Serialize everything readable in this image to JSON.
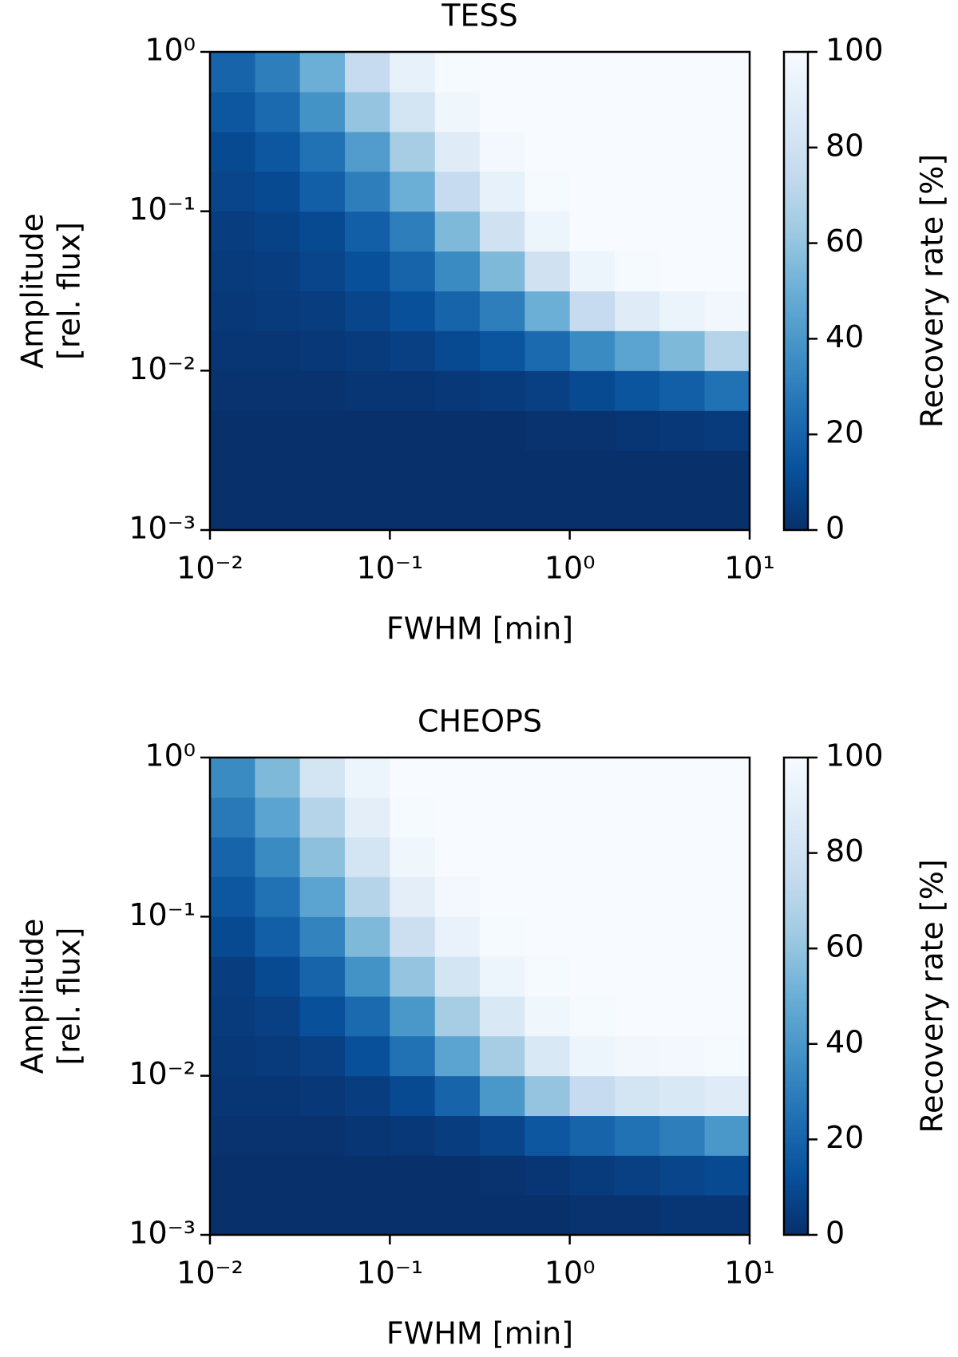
{
  "chart_data": [
    {
      "type": "heatmap",
      "title": "TESS",
      "xlabel": "FWHM [min]",
      "ylabel": [
        "Amplitude",
        "[rel. flux]"
      ],
      "log_x": true,
      "log_y": true,
      "colormap": "Blues",
      "xlim": [
        0.01,
        10
      ],
      "ylim": [
        0.001,
        1
      ],
      "xticks": [
        {
          "value": 0.01,
          "label": "10⁻²"
        },
        {
          "value": 0.1,
          "label": "10⁻¹"
        },
        {
          "value": 1,
          "label": "10⁰"
        },
        {
          "value": 10,
          "label": "10¹"
        }
      ],
      "yticks": [
        {
          "value": 0.001,
          "label": "10⁻³"
        },
        {
          "value": 0.01,
          "label": "10⁻²"
        },
        {
          "value": 0.1,
          "label": "10⁻¹"
        },
        {
          "value": 1,
          "label": "10⁰"
        }
      ],
      "xbins": [
        0.01,
        0.0178,
        0.0316,
        0.0562,
        0.1,
        0.178,
        0.316,
        0.562,
        1,
        1.78,
        3.16,
        5.62,
        10
      ],
      "ybins": [
        0.001,
        0.00178,
        0.00316,
        0.00562,
        0.01,
        0.0178,
        0.0316,
        0.0562,
        0.1,
        0.178,
        0.316,
        0.562,
        1
      ],
      "z": [
        [
          0,
          0,
          0,
          0,
          0,
          0,
          0,
          0,
          0,
          0,
          0,
          0
        ],
        [
          0,
          0,
          0,
          0,
          0,
          0,
          0,
          0,
          0,
          0,
          0,
          0
        ],
        [
          0,
          0,
          0,
          0,
          0,
          0,
          0,
          1,
          1,
          2,
          3,
          4
        ],
        [
          1,
          1,
          1,
          2,
          2,
          3,
          4,
          6,
          10,
          14,
          18,
          25
        ],
        [
          2,
          2,
          3,
          4,
          6,
          10,
          14,
          22,
          35,
          45,
          55,
          70
        ],
        [
          3,
          4,
          5,
          8,
          12,
          20,
          30,
          50,
          75,
          88,
          94,
          97
        ],
        [
          4,
          5,
          8,
          12,
          20,
          35,
          55,
          80,
          95,
          99,
          100,
          100
        ],
        [
          5,
          7,
          10,
          18,
          30,
          55,
          80,
          95,
          100,
          100,
          100,
          100
        ],
        [
          8,
          10,
          18,
          30,
          50,
          75,
          92,
          99,
          100,
          100,
          100,
          100
        ],
        [
          10,
          15,
          25,
          42,
          65,
          88,
          98,
          100,
          100,
          100,
          100,
          100
        ],
        [
          15,
          22,
          38,
          60,
          82,
          96,
          100,
          100,
          100,
          100,
          100,
          100
        ],
        [
          20,
          30,
          50,
          75,
          92,
          99,
          100,
          100,
          100,
          100,
          100,
          100
        ]
      ],
      "colorbar": {
        "label": "Recovery rate [%]",
        "lim": [
          0,
          100
        ],
        "ticks": [
          0,
          20,
          40,
          60,
          80,
          100
        ]
      }
    },
    {
      "type": "heatmap",
      "title": "CHEOPS",
      "xlabel": "FWHM [min]",
      "ylabel": [
        "Amplitude",
        "[rel. flux]"
      ],
      "log_x": true,
      "log_y": true,
      "colormap": "Blues",
      "xlim": [
        0.01,
        10
      ],
      "ylim": [
        0.001,
        1
      ],
      "xticks": [
        {
          "value": 0.01,
          "label": "10⁻²"
        },
        {
          "value": 0.1,
          "label": "10⁻¹"
        },
        {
          "value": 1,
          "label": "10⁰"
        },
        {
          "value": 10,
          "label": "10¹"
        }
      ],
      "yticks": [
        {
          "value": 0.001,
          "label": "10⁻³"
        },
        {
          "value": 0.01,
          "label": "10⁻²"
        },
        {
          "value": 0.1,
          "label": "10⁻¹"
        },
        {
          "value": 1,
          "label": "10⁰"
        }
      ],
      "xbins": [
        0.01,
        0.0178,
        0.0316,
        0.0562,
        0.1,
        0.178,
        0.316,
        0.562,
        1,
        1.78,
        3.16,
        5.62,
        10
      ],
      "ybins": [
        0.001,
        0.00178,
        0.00316,
        0.00562,
        0.01,
        0.0178,
        0.0316,
        0.0562,
        0.1,
        0.178,
        0.316,
        0.562,
        1
      ],
      "z": [
        [
          0,
          0,
          0,
          0,
          0,
          0,
          0,
          0,
          1,
          1,
          2,
          2
        ],
        [
          0,
          0,
          0,
          0,
          0,
          0,
          1,
          2,
          4,
          6,
          8,
          10
        ],
        [
          1,
          1,
          1,
          2,
          3,
          5,
          8,
          15,
          20,
          25,
          30,
          40
        ],
        [
          2,
          2,
          3,
          5,
          10,
          20,
          40,
          60,
          75,
          82,
          85,
          88
        ],
        [
          3,
          4,
          6,
          12,
          25,
          45,
          65,
          85,
          95,
          97,
          98,
          99
        ],
        [
          4,
          6,
          12,
          22,
          40,
          65,
          85,
          96,
          99,
          100,
          100,
          100
        ],
        [
          5,
          10,
          20,
          38,
          60,
          82,
          95,
          99,
          100,
          100,
          100,
          100
        ],
        [
          10,
          18,
          32,
          55,
          78,
          93,
          99,
          100,
          100,
          100,
          100,
          100
        ],
        [
          15,
          25,
          45,
          70,
          90,
          98,
          100,
          100,
          100,
          100,
          100,
          100
        ],
        [
          20,
          35,
          58,
          82,
          96,
          100,
          100,
          100,
          100,
          100,
          100,
          100
        ],
        [
          28,
          45,
          70,
          90,
          99,
          100,
          100,
          100,
          100,
          100,
          100,
          100
        ],
        [
          35,
          55,
          82,
          95,
          100,
          100,
          100,
          100,
          100,
          100,
          100,
          100
        ]
      ],
      "colorbar": {
        "label": "Recovery rate [%]",
        "lim": [
          0,
          100
        ],
        "ticks": [
          0,
          20,
          40,
          60,
          80,
          100
        ]
      }
    }
  ]
}
